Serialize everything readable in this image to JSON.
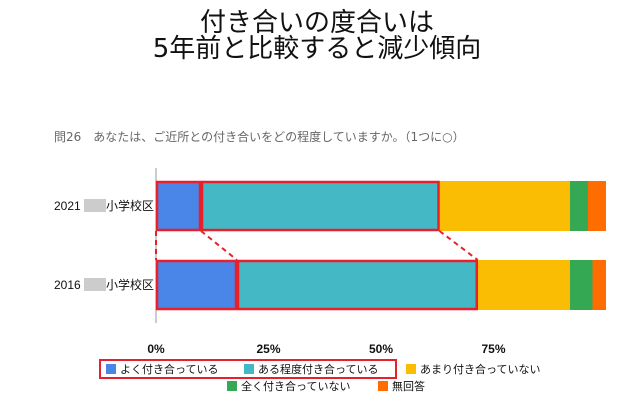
{
  "title": {
    "line1": "付き合いの度合いは",
    "line2": "5年前と比較すると減少傾向"
  },
  "question": "問26　あなたは、ご近所との付き合いをどの程度していますか。（1つに○）",
  "row_suffix": "小学校区",
  "colors": {
    "よく付き合っている": "#4a86e8",
    "ある程度付き合っている": "#45b8c5",
    "あまり付き合っていない": "#fbbc04",
    "全く付き合っていない": "#34a853",
    "無回答": "#ff6d01",
    "highlight": "#e8202b",
    "redacted": "#cccccc"
  },
  "chart_data": {
    "type": "bar",
    "orientation": "horizontal",
    "stacked": true,
    "percent": true,
    "categories": [
      "2021",
      "2016"
    ],
    "series": [
      {
        "name": "よく付き合っている",
        "values": [
          10,
          18
        ]
      },
      {
        "name": "ある程度付き合っている",
        "values": [
          53,
          53.5
        ]
      },
      {
        "name": "あまり付き合っていない",
        "values": [
          29,
          20.5
        ]
      },
      {
        "name": "全く付き合っていない",
        "values": [
          4,
          5
        ]
      },
      {
        "name": "無回答",
        "values": [
          4,
          3
        ]
      }
    ],
    "xlim": [
      0,
      100
    ],
    "xticks": [
      "0%",
      "25%",
      "50%",
      "75%"
    ],
    "xtick_values": [
      0,
      25,
      50,
      75
    ],
    "grid": false,
    "legend_position": "bottom",
    "highlighted_series": [
      "よく付き合っている",
      "ある程度付き合っている"
    ]
  }
}
